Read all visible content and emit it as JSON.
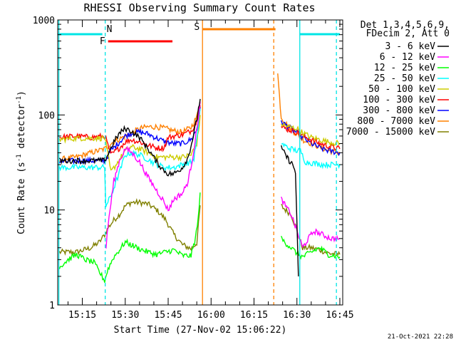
{
  "chart_data": {
    "type": "line",
    "title": "RHESSI Observing Summary Count Rates",
    "xlabel": "Start Time (27-Nov-02 15:06:22)",
    "ylabel_main": "Count Rate (s",
    "ylabel_sup1": "-1",
    "ylabel_mid": " detector",
    "ylabel_sup2": "-1",
    "ylabel_end": ")",
    "y_scale": "log",
    "ylim": [
      1,
      1000
    ],
    "xlim_minutes": [
      906.4,
      1006.0
    ],
    "x_ticks": [
      {
        "value": 915,
        "label": "15:15"
      },
      {
        "value": 930,
        "label": "15:30"
      },
      {
        "value": 945,
        "label": "15:45"
      },
      {
        "value": 960,
        "label": "16:00"
      },
      {
        "value": 975,
        "label": "16:15"
      },
      {
        "value": 990,
        "label": "16:30"
      },
      {
        "value": 1005,
        "label": "16:45"
      }
    ],
    "y_ticks": [
      {
        "value": 1,
        "label": "1"
      },
      {
        "value": 10,
        "label": "10"
      },
      {
        "value": 100,
        "label": "100"
      },
      {
        "value": 1000,
        "label": "1000"
      }
    ],
    "legend_header": [
      "Det 1,3,4,5,6,9,",
      "FDecim 2, Att 0"
    ],
    "legend_placement": "right",
    "timestamp": "21-Oct-2021 22:28",
    "flags": [
      {
        "label": "N",
        "color": "#00e5e5",
        "segments": [
          [
            906.4,
            922.0
          ],
          [
            991.0,
            1005.0
          ]
        ]
      },
      {
        "label": "F",
        "color": "#ff0000",
        "segments": [
          [
            924.0,
            946.5
          ]
        ]
      },
      {
        "label": "S",
        "color": "#ff8000",
        "segments": [
          [
            957.0,
            982.5
          ]
        ]
      }
    ],
    "vertical_lines": [
      {
        "x": 906.8,
        "color": "#00e5e5",
        "style": "solid"
      },
      {
        "x": 923.0,
        "color": "#00e5e5",
        "style": "dashed"
      },
      {
        "x": 957.0,
        "color": "#ff8000",
        "style": "solid"
      },
      {
        "x": 981.9,
        "color": "#ff8000",
        "style": "dashed"
      },
      {
        "x": 991.0,
        "color": "#00e5e5",
        "style": "solid"
      },
      {
        "x": 1003.8,
        "color": "#00e5e5",
        "style": "dashed"
      }
    ],
    "series": [
      {
        "name": "3 - 6 keV",
        "color": "#000000",
        "x": [
          907,
          913,
          920,
          922.9,
          926,
          928,
          930,
          932,
          935,
          938,
          941,
          943,
          945,
          947,
          950,
          952,
          953.5,
          955,
          956.5,
          984.5,
          985.5,
          987,
          988.5,
          989.5,
          990.5
        ],
        "y": [
          33,
          33,
          33,
          33,
          52,
          64,
          72,
          68,
          58,
          44,
          32,
          27,
          24,
          24,
          28,
          36,
          55,
          90,
          170,
          45,
          40,
          34,
          30,
          25,
          2
        ]
      },
      {
        "name": "6 - 12 keV",
        "color": "#ff00ff",
        "x": [
          923.3,
          924,
          926,
          928,
          930,
          932,
          935,
          938,
          941,
          943,
          945,
          947,
          950,
          952,
          953.5,
          955,
          956.5,
          984.5,
          986,
          988,
          990,
          992,
          994,
          996,
          1002,
          1005
        ],
        "y": [
          4,
          7,
          20,
          33,
          44,
          41,
          32,
          22,
          16,
          13,
          10,
          13,
          15,
          20,
          35,
          70,
          160,
          13,
          11,
          9,
          6,
          4,
          5,
          6,
          5,
          5
        ]
      },
      {
        "name": "12 - 25 keV",
        "color": "#00ff00",
        "x": [
          907,
          910,
          913,
          916,
          919,
          922.8,
          924,
          926,
          928,
          930,
          932,
          935,
          938,
          941,
          944,
          947,
          950,
          953,
          954.5,
          955.5,
          956.5,
          984.5,
          986,
          988,
          990,
          992,
          995,
          998,
          1001,
          1005
        ],
        "y": [
          2.5,
          3.0,
          3.4,
          3.0,
          2.8,
          1.8,
          2.4,
          3.2,
          3.8,
          4.6,
          4.3,
          3.9,
          3.6,
          3.4,
          3.6,
          3.8,
          3.3,
          3.3,
          5.0,
          8.0,
          22,
          5.0,
          4.5,
          4.0,
          3.5,
          3.2,
          3.6,
          4.0,
          3.4,
          3.2
        ]
      },
      {
        "name": "25 - 50 keV",
        "color": "#00ffff",
        "x": [
          907,
          912,
          918,
          921.5,
          922.8,
          923.2,
          925,
          928,
          930,
          932,
          935,
          938,
          941,
          944,
          947,
          950,
          953,
          954,
          955.5,
          956.5,
          984.5,
          987,
          990,
          991.2,
          993,
          996,
          999,
          1002,
          1005
        ],
        "y": [
          28,
          28,
          28,
          28,
          28,
          11,
          14,
          25,
          38,
          40,
          38,
          34,
          30,
          28,
          28,
          30,
          32,
          35,
          70,
          160,
          50,
          45,
          42,
          42,
          32,
          31,
          30,
          30,
          30
        ]
      },
      {
        "name": "50 - 100 keV",
        "color": "#cccc00",
        "x": [
          907,
          913,
          918,
          922.9,
          925,
          928,
          930,
          932,
          935,
          938,
          941,
          944,
          947,
          950,
          953,
          955,
          956.5,
          984.5,
          987,
          990,
          992,
          995,
          998,
          1001,
          1005
        ],
        "y": [
          55,
          57,
          57,
          57,
          25,
          34,
          42,
          46,
          44,
          40,
          36,
          36,
          36,
          36,
          38,
          50,
          110,
          80,
          75,
          72,
          65,
          58,
          55,
          52,
          50
        ]
      },
      {
        "name": "100 - 300 keV",
        "color": "#ff0000",
        "x": [
          907,
          913,
          918,
          922.9,
          925,
          928,
          930,
          932,
          935,
          938,
          941,
          943.5,
          945,
          947,
          950,
          953,
          955,
          956.5,
          984.5,
          987,
          990,
          992,
          995,
          998,
          1001,
          1005
        ],
        "y": [
          58,
          60,
          58,
          60,
          38,
          45,
          52,
          55,
          52,
          48,
          45,
          45,
          58,
          60,
          62,
          68,
          85,
          150,
          75,
          70,
          66,
          60,
          55,
          50,
          47,
          44
        ]
      },
      {
        "name": "300 - 800 keV",
        "color": "#0000ff",
        "x": [
          907,
          913,
          918,
          922.9,
          925,
          928,
          930,
          932,
          935,
          938,
          941,
          944,
          947,
          950,
          953,
          955,
          956.5,
          984.5,
          987,
          990,
          992,
          995,
          998,
          1001,
          1005
        ],
        "y": [
          32,
          33,
          33,
          33,
          42,
          52,
          60,
          64,
          66,
          63,
          57,
          52,
          50,
          50,
          55,
          70,
          130,
          85,
          75,
          65,
          58,
          50,
          45,
          42,
          40
        ]
      },
      {
        "name": "800 - 7000 keV",
        "color": "#ff8000",
        "x": [
          907,
          913,
          918,
          922.9,
          925,
          928,
          930,
          932,
          935,
          938,
          941,
          944,
          947,
          950,
          953,
          955,
          956.5,
          983.3,
          984.5,
          987,
          990,
          992,
          995,
          998,
          1001,
          1005
        ],
        "y": [
          34,
          36,
          40,
          44,
          50,
          56,
          60,
          64,
          72,
          75,
          75,
          72,
          68,
          66,
          74,
          95,
          160,
          270,
          95,
          75,
          62,
          55,
          50,
          46,
          42,
          40
        ]
      },
      {
        "name": "7000 - 15000 keV",
        "color": "#808000",
        "x": [
          907,
          913,
          918,
          921,
          922.8,
          924,
          926,
          928,
          930,
          932,
          935,
          938,
          941,
          944,
          947,
          950,
          953,
          955,
          956.5,
          984.5,
          986,
          988,
          990,
          992,
          995,
          998,
          1001,
          1005
        ],
        "y": [
          3.6,
          3.6,
          4.0,
          4.6,
          5.5,
          6.5,
          7.8,
          9.0,
          11,
          12,
          12,
          11.5,
          10,
          8.0,
          5.5,
          4.3,
          3.9,
          4.5,
          14,
          11,
          10,
          9,
          6,
          4,
          4,
          3.8,
          3.5,
          3.4
        ]
      }
    ]
  }
}
